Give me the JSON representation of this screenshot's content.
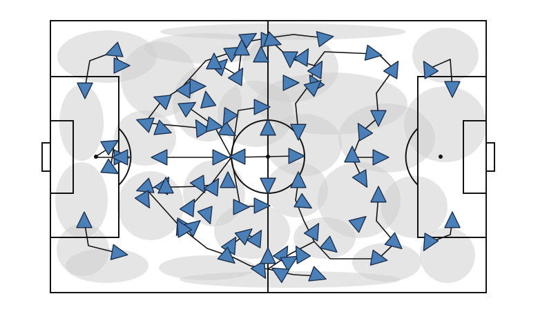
{
  "figure": {
    "type": "football pitch movement diagram",
    "colors": {
      "pitch_background": "#ffffff",
      "pitch_lines": "#111111",
      "zone_fill": "#d0d0d0",
      "arrow_fill": "#4a7fb8",
      "arrow_outline": "#1c2e4a",
      "connector_lines": "#111111"
    },
    "arrow_shape": "triangle",
    "arrow_count": 88,
    "grid": false,
    "legend": false
  }
}
